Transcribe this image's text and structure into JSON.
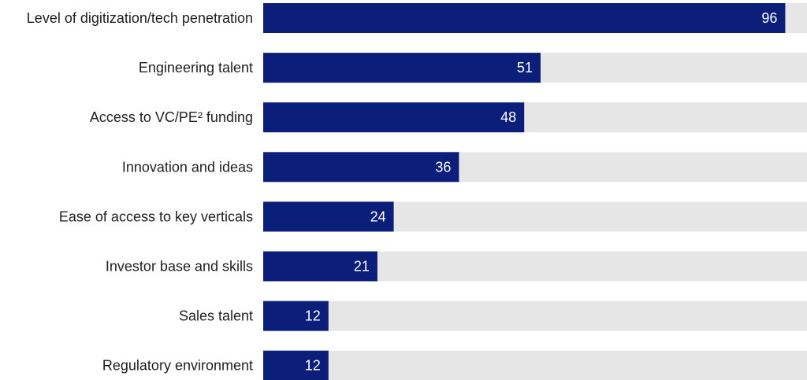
{
  "colors": {
    "bar": "#0b1f7a",
    "track": "#e6e6e6",
    "label_text": "#1f1f1f",
    "value_text": "#ffffff"
  },
  "chart_data": {
    "type": "bar",
    "orientation": "horizontal",
    "categories": [
      "Level of digitization/tech penetration",
      "Engineering talent",
      "Access to VC/PE² funding",
      "Innovation and ideas",
      "Ease of access to key verticals",
      "Investor base and skills",
      "Sales talent",
      "Regulatory environment"
    ],
    "values": [
      96,
      51,
      48,
      36,
      24,
      21,
      12,
      12
    ],
    "value_labels": [
      "96",
      "51",
      "48",
      "36",
      "24",
      "21",
      "12",
      "12"
    ],
    "xlim": [
      0,
      100
    ],
    "grid": false,
    "legend": "none",
    "data_labels": "inside-end"
  }
}
